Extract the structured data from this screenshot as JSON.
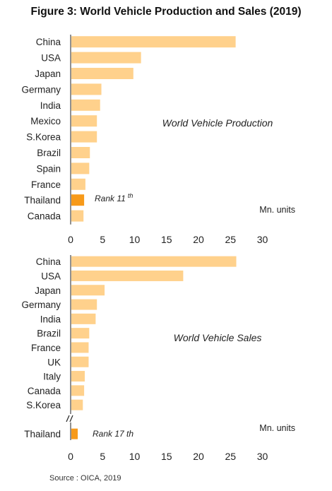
{
  "title": "Figure 3: World Vehicle Production and Sales (2019)",
  "source": "Source : OICA, 2019",
  "colors": {
    "bar": "#FFD18C",
    "highlight": "#F79A1A",
    "axis": "#222222"
  },
  "chart_data": [
    {
      "type": "bar",
      "orientation": "horizontal",
      "title": "World Vehicle Production",
      "unit_label": "Mn. units",
      "xlim": [
        0,
        30
      ],
      "xticks": [
        0,
        5,
        10,
        15,
        20,
        25,
        30
      ],
      "highlight": "Thailand",
      "highlight_note": {
        "text": "Rank 11",
        "sup": "th"
      },
      "categories": [
        "China",
        "USA",
        "Japan",
        "Germany",
        "India",
        "Mexico",
        "S.Korea",
        "Brazil",
        "Spain",
        "France",
        "Thailand",
        "Canada"
      ],
      "values": [
        25.7,
        10.9,
        9.7,
        4.7,
        4.5,
        4.0,
        4.0,
        2.9,
        2.8,
        2.2,
        2.0,
        1.9
      ]
    },
    {
      "type": "bar",
      "orientation": "horizontal",
      "title": "World Vehicle Sales",
      "unit_label": "Mn. units",
      "xlim": [
        0,
        30
      ],
      "xticks": [
        0,
        5,
        10,
        15,
        20,
        25,
        30
      ],
      "highlight": "Thailand",
      "highlight_note": {
        "text": "Rank 17 th",
        "sup": ""
      },
      "axis_break": true,
      "categories": [
        "China",
        "USA",
        "Japan",
        "Germany",
        "India",
        "Brazil",
        "France",
        "UK",
        "Italy",
        "Canada",
        "S.Korea",
        "Thailand"
      ],
      "values": [
        25.8,
        17.5,
        5.2,
        4.0,
        3.8,
        2.8,
        2.7,
        2.7,
        2.1,
        2.0,
        1.8,
        1.0
      ]
    }
  ]
}
